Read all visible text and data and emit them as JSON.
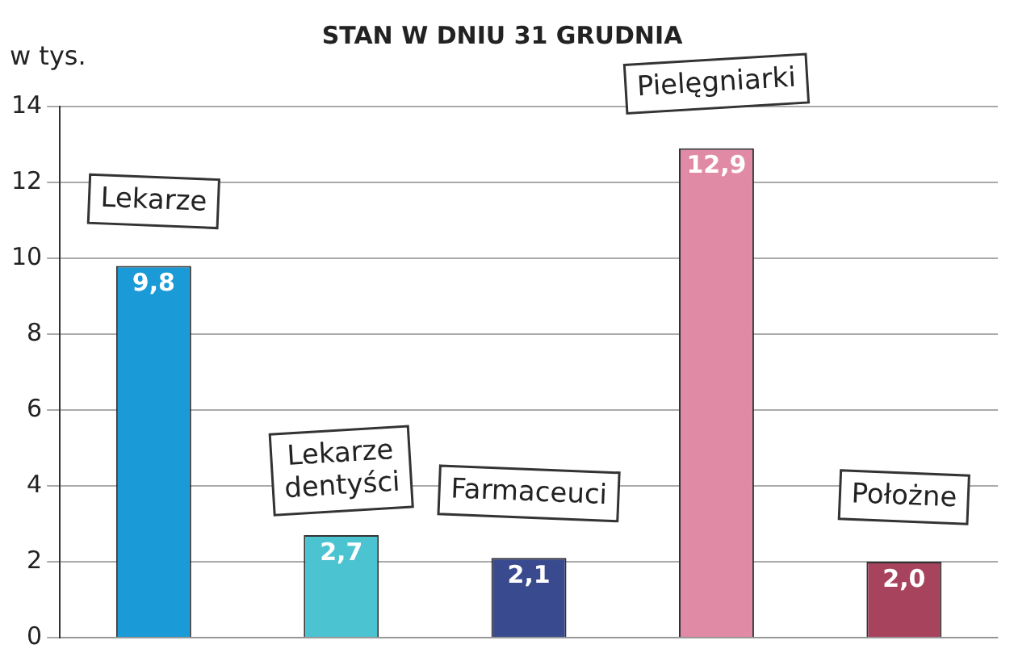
{
  "chart_data": {
    "type": "bar",
    "title": "STAN W DNIU 31 GRUDNIA",
    "ylabel": "w tys.",
    "categories": [
      "Lekarze",
      "Lekarze dentyści",
      "Farmaceuci",
      "Pielęgniarki",
      "Położne"
    ],
    "values": [
      9.8,
      2.7,
      2.1,
      12.9,
      2.0
    ],
    "colors": [
      "#1a9ad6",
      "#4cc3d0",
      "#3a4a8f",
      "#e08aa5",
      "#a8435e"
    ],
    "value_labels": [
      "9,8",
      "2,7",
      "2,1",
      "12,9",
      "2,0"
    ],
    "ylim": [
      0,
      14
    ],
    "yticks": [
      0,
      2,
      4,
      6,
      8,
      10,
      12,
      14
    ],
    "grid": "y",
    "legend": false
  }
}
